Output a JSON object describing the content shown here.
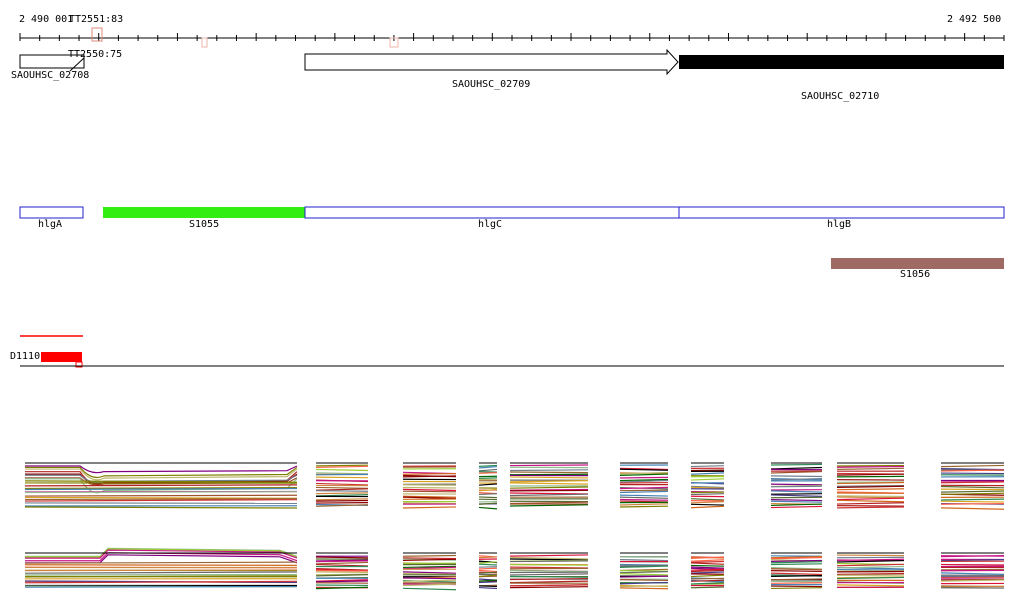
{
  "ruler": {
    "start_label": "2 490 001",
    "end_label": "2 492 500"
  },
  "tss_labels": [
    {
      "text": "TT2551:83"
    },
    {
      "text": "TT2550:75"
    }
  ],
  "genes": [
    {
      "name": "SAOUHSC_02708",
      "strand": "+"
    },
    {
      "name": "SAOUHSC_02709",
      "strand": "+"
    },
    {
      "name": "SAOUHSC_02710",
      "strand": "-"
    }
  ],
  "features": [
    {
      "name": "hlgA"
    },
    {
      "name": "S1055"
    },
    {
      "name": "hlgC"
    },
    {
      "name": "hlgB"
    },
    {
      "name": "S1056"
    }
  ],
  "other_features": [
    {
      "name": "D1110"
    }
  ],
  "colors": {
    "feature_outline": "#2222cc",
    "s1055": "#33ee11",
    "s1056": "#a06a64",
    "d1110": "#ff0000",
    "gene_fill_reverse": "#000000",
    "tss_marker": "#dd8877"
  }
}
